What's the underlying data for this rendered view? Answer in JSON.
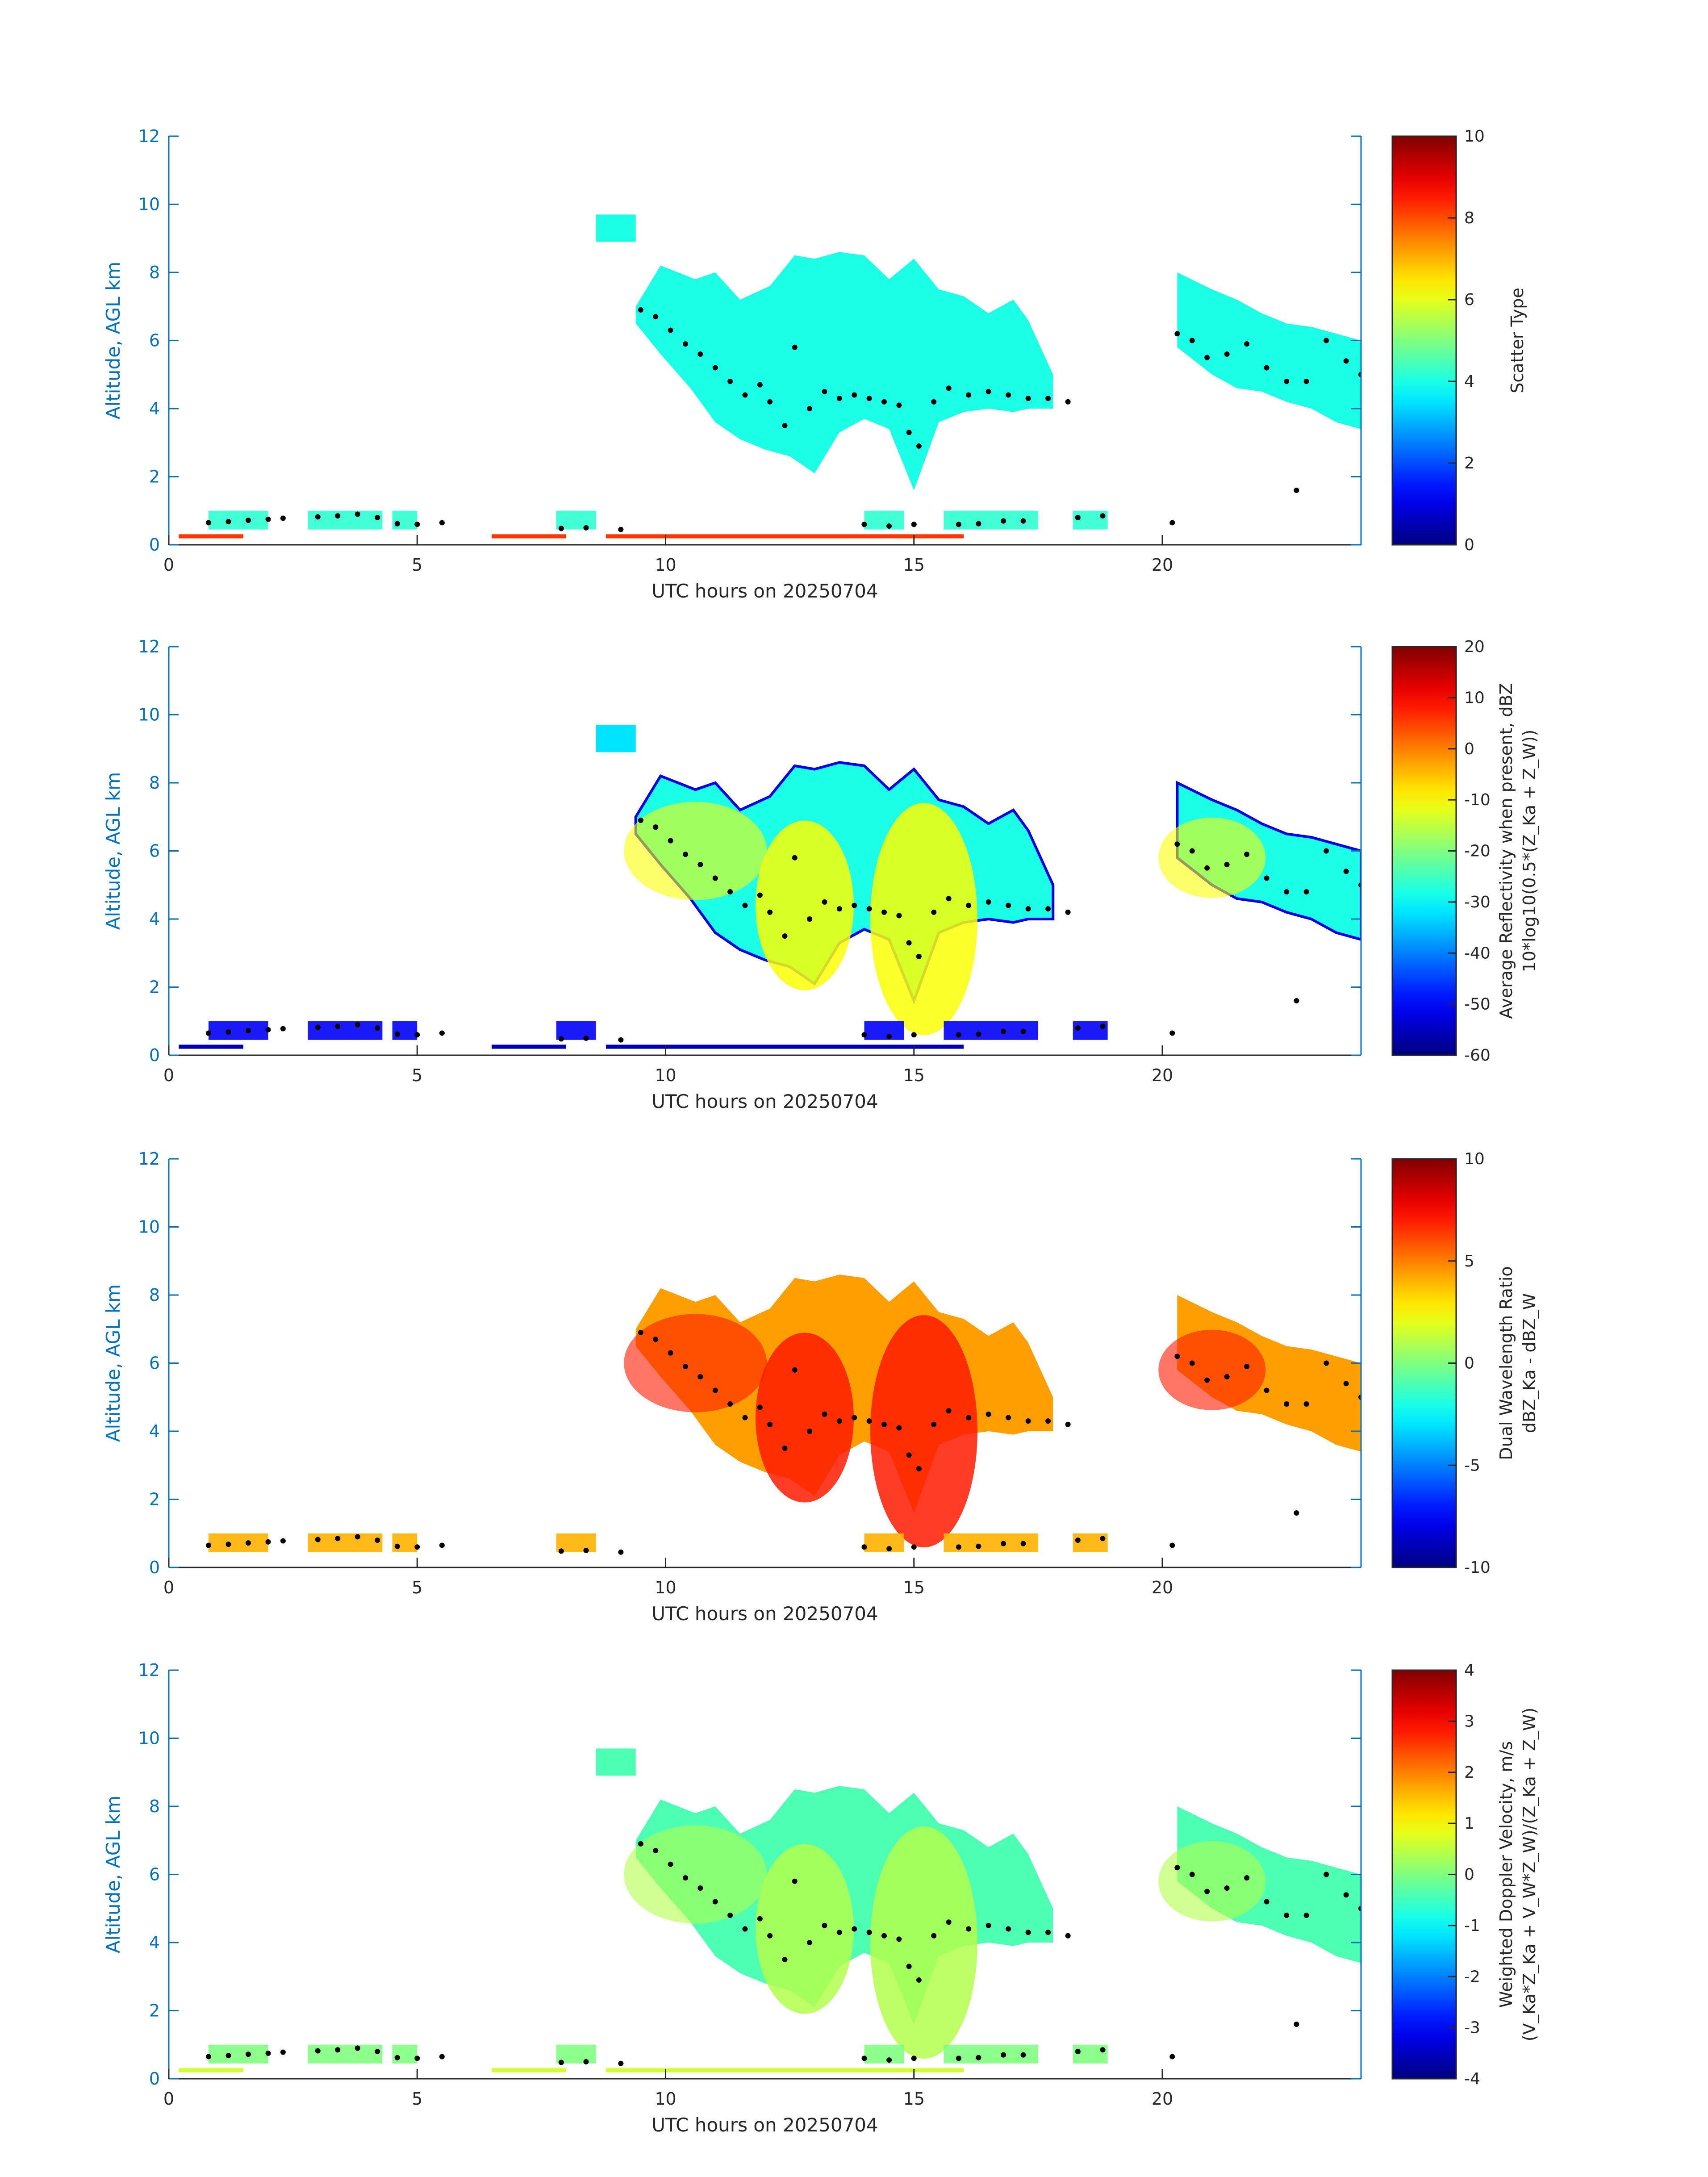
{
  "chart_data": [
    {
      "type": "heatmap",
      "xlabel": "UTC hours on 20250704",
      "ylabel": "Altitude, AGL km",
      "xlim": [
        0,
        24
      ],
      "ylim": [
        0,
        12
      ],
      "xticks": [
        "0",
        "5",
        "10",
        "15",
        "20"
      ],
      "yticks": [
        "0",
        "2",
        "4",
        "6",
        "8",
        "10",
        "12"
      ],
      "colorbar": {
        "label_lines": [
          "Scatter Type"
        ],
        "range": [
          0,
          10
        ],
        "ticks": [
          "0",
          "2",
          "4",
          "6",
          "8",
          "10"
        ]
      },
      "field": "scatter_type"
    },
    {
      "type": "heatmap",
      "xlabel": "UTC hours on 20250704",
      "ylabel": "Altitude, AGL km",
      "xlim": [
        0,
        24
      ],
      "ylim": [
        0,
        12
      ],
      "xticks": [
        "0",
        "5",
        "10",
        "15",
        "20"
      ],
      "yticks": [
        "0",
        "2",
        "4",
        "6",
        "8",
        "10",
        "12"
      ],
      "colorbar": {
        "label_lines": [
          "Average Reflectivity when present, dBZ",
          "10*log10(0.5*(Z_Ka + Z_W))"
        ],
        "range": [
          -60,
          20
        ],
        "ticks": [
          "-60",
          "-50",
          "-40",
          "-30",
          "-20",
          "-10",
          "0",
          "10",
          "20"
        ]
      },
      "field": "reflectivity"
    },
    {
      "type": "heatmap",
      "xlabel": "UTC hours on 20250704",
      "ylabel": "Altitude, AGL km",
      "xlim": [
        0,
        24
      ],
      "ylim": [
        0,
        12
      ],
      "xticks": [
        "0",
        "5",
        "10",
        "15",
        "20"
      ],
      "yticks": [
        "0",
        "2",
        "4",
        "6",
        "8",
        "10",
        "12"
      ],
      "colorbar": {
        "label_lines": [
          "Dual Wavelength Ratio",
          "dBZ_Ka - dBZ_W"
        ],
        "range": [
          -10,
          10
        ],
        "ticks": [
          "-10",
          "-5",
          "0",
          "5",
          "10"
        ]
      },
      "field": "dwr"
    },
    {
      "type": "heatmap",
      "xlabel": "UTC hours on 20250704",
      "ylabel": "Altitude, AGL km",
      "xlim": [
        0,
        24
      ],
      "ylim": [
        0,
        12
      ],
      "xticks": [
        "0",
        "5",
        "10",
        "15",
        "20"
      ],
      "yticks": [
        "0",
        "2",
        "4",
        "6",
        "8",
        "10",
        "12"
      ],
      "colorbar": {
        "label_lines": [
          "Weighted Doppler Velocity, m/s",
          "(V_Ka*Z_Ka + V_W*Z_W)/(Z_Ka + Z_W)"
        ],
        "range": [
          -4,
          4
        ],
        "ticks": [
          "-4",
          "-3",
          "-2",
          "-1",
          "0",
          "1",
          "2",
          "3",
          "4"
        ]
      },
      "field": "velocity"
    }
  ],
  "cloud_top_km": [
    [
      8.6,
      9.7
    ],
    [
      9.4,
      7.0
    ],
    [
      9.9,
      8.2
    ],
    [
      10.6,
      7.8
    ],
    [
      11.0,
      8.0
    ],
    [
      11.5,
      7.2
    ],
    [
      12.1,
      7.6
    ],
    [
      12.6,
      8.5
    ],
    [
      13.0,
      8.4
    ],
    [
      13.5,
      8.6
    ],
    [
      14.0,
      8.5
    ],
    [
      14.5,
      7.8
    ],
    [
      15.0,
      8.4
    ],
    [
      15.5,
      7.5
    ],
    [
      16.0,
      7.3
    ],
    [
      16.5,
      6.8
    ],
    [
      17.0,
      7.2
    ],
    [
      17.3,
      6.6
    ],
    [
      17.8,
      5.0
    ],
    [
      20.3,
      8.0
    ],
    [
      21.0,
      7.5
    ],
    [
      21.5,
      7.2
    ],
    [
      22.0,
      6.8
    ],
    [
      22.5,
      6.5
    ],
    [
      23.0,
      6.4
    ],
    [
      23.5,
      6.2
    ],
    [
      24.0,
      6.0
    ]
  ],
  "cloud_base_km": [
    [
      9.4,
      6.5
    ],
    [
      9.9,
      5.6
    ],
    [
      10.5,
      4.6
    ],
    [
      11.0,
      3.6
    ],
    [
      11.5,
      3.1
    ],
    [
      12.0,
      2.8
    ],
    [
      12.5,
      2.6
    ],
    [
      13.0,
      2.1
    ],
    [
      13.5,
      3.3
    ],
    [
      14.0,
      3.7
    ],
    [
      14.5,
      3.4
    ],
    [
      15.0,
      1.6
    ],
    [
      15.5,
      3.6
    ],
    [
      16.0,
      3.9
    ],
    [
      16.5,
      4.0
    ],
    [
      17.0,
      3.9
    ],
    [
      17.3,
      4.0
    ],
    [
      17.8,
      4.0
    ],
    [
      20.3,
      5.8
    ],
    [
      21.0,
      5.0
    ],
    [
      21.5,
      4.6
    ],
    [
      22.0,
      4.5
    ],
    [
      22.5,
      4.2
    ],
    [
      23.0,
      4.0
    ],
    [
      23.5,
      3.6
    ],
    [
      24.0,
      3.4
    ]
  ],
  "detected_height_km": [
    [
      0.8,
      0.65
    ],
    [
      1.2,
      0.68
    ],
    [
      1.6,
      0.72
    ],
    [
      2.0,
      0.75
    ],
    [
      2.3,
      0.78
    ],
    [
      3.0,
      0.82
    ],
    [
      3.4,
      0.85
    ],
    [
      3.8,
      0.9
    ],
    [
      4.2,
      0.8
    ],
    [
      4.6,
      0.62
    ],
    [
      5.0,
      0.6
    ],
    [
      5.5,
      0.65
    ],
    [
      7.9,
      0.48
    ],
    [
      8.4,
      0.5
    ],
    [
      9.1,
      0.45
    ],
    [
      9.5,
      6.9
    ],
    [
      9.8,
      6.7
    ],
    [
      10.1,
      6.3
    ],
    [
      10.4,
      5.9
    ],
    [
      10.7,
      5.6
    ],
    [
      11.0,
      5.2
    ],
    [
      11.3,
      4.8
    ],
    [
      11.6,
      4.4
    ],
    [
      11.9,
      4.7
    ],
    [
      12.1,
      4.2
    ],
    [
      12.4,
      3.5
    ],
    [
      12.6,
      5.8
    ],
    [
      12.9,
      4.0
    ],
    [
      13.2,
      4.5
    ],
    [
      13.5,
      4.3
    ],
    [
      13.8,
      4.4
    ],
    [
      14.1,
      4.3
    ],
    [
      14.4,
      4.2
    ],
    [
      14.7,
      4.1
    ],
    [
      14.9,
      3.3
    ],
    [
      15.1,
      2.9
    ],
    [
      15.4,
      4.2
    ],
    [
      15.7,
      4.6
    ],
    [
      16.1,
      4.4
    ],
    [
      16.5,
      4.5
    ],
    [
      16.9,
      4.4
    ],
    [
      17.3,
      4.3
    ],
    [
      17.7,
      4.3
    ],
    [
      18.1,
      4.2
    ],
    [
      14.0,
      0.6
    ],
    [
      14.5,
      0.55
    ],
    [
      15.0,
      0.6
    ],
    [
      15.9,
      0.6
    ],
    [
      16.3,
      0.62
    ],
    [
      16.8,
      0.7
    ],
    [
      17.2,
      0.7
    ],
    [
      18.3,
      0.8
    ],
    [
      18.8,
      0.85
    ],
    [
      20.3,
      6.2
    ],
    [
      20.6,
      6.0
    ],
    [
      20.9,
      5.5
    ],
    [
      21.3,
      5.6
    ],
    [
      21.7,
      5.9
    ],
    [
      22.1,
      5.2
    ],
    [
      22.5,
      4.8
    ],
    [
      22.9,
      4.8
    ],
    [
      23.3,
      6.0
    ],
    [
      23.7,
      5.4
    ],
    [
      24.0,
      5.0
    ],
    [
      22.7,
      1.6
    ],
    [
      20.2,
      0.65
    ]
  ],
  "surface_layer_km": 0.25
}
